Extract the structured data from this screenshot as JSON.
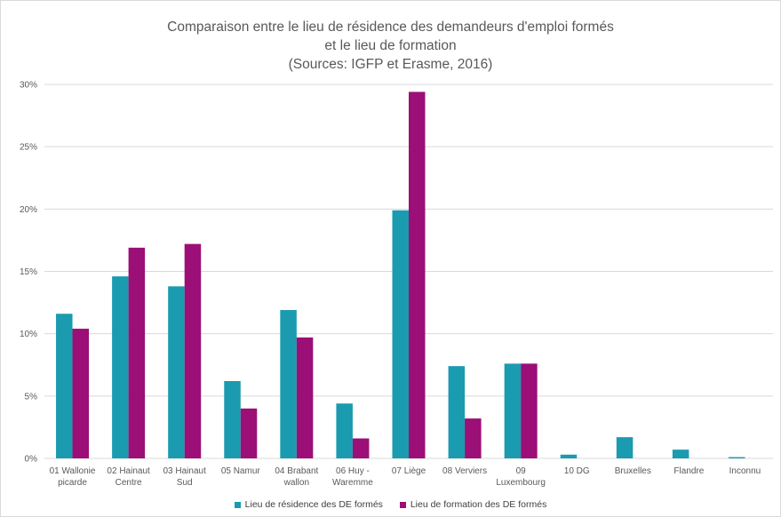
{
  "title": {
    "line1": "Comparaison entre le lieu de résidence des demandeurs d'emploi formés",
    "line2": "et le lieu de formation",
    "line3": "(Sources: IGFP et Erasme, 2016)"
  },
  "colors": {
    "series1": "#1a9bb0",
    "series2": "#9b0f77",
    "grid": "#d9d9d9"
  },
  "chart_data": {
    "type": "bar",
    "categories": [
      [
        "01 Wallonie",
        "picarde"
      ],
      [
        "02 Hainaut",
        "Centre"
      ],
      [
        "03 Hainaut",
        "Sud"
      ],
      [
        "05 Namur"
      ],
      [
        "04 Brabant",
        "wallon"
      ],
      [
        "06 Huy -",
        "Waremme"
      ],
      [
        "07 Liège"
      ],
      [
        "08 Verviers"
      ],
      [
        "09",
        "Luxembourg"
      ],
      [
        "10 DG"
      ],
      [
        "Bruxelles"
      ],
      [
        "Flandre"
      ],
      [
        "Inconnu"
      ]
    ],
    "series": [
      {
        "name": "Lieu de résidence des DE formés",
        "values": [
          11.6,
          14.6,
          13.8,
          6.2,
          11.9,
          4.4,
          19.9,
          7.4,
          7.6,
          0.3,
          1.7,
          0.7,
          0.1
        ]
      },
      {
        "name": "Lieu de formation des DE formés",
        "values": [
          10.4,
          16.9,
          17.2,
          4.0,
          9.7,
          1.6,
          29.4,
          3.2,
          7.6,
          0,
          0,
          0,
          0
        ]
      }
    ],
    "ylim": [
      0,
      30
    ],
    "yticks": [
      0,
      5,
      10,
      15,
      20,
      25,
      30
    ],
    "ytick_labels": [
      "0%",
      "5%",
      "10%",
      "15%",
      "20%",
      "25%",
      "30%"
    ],
    "grid": true,
    "legend_position": "bottom"
  }
}
